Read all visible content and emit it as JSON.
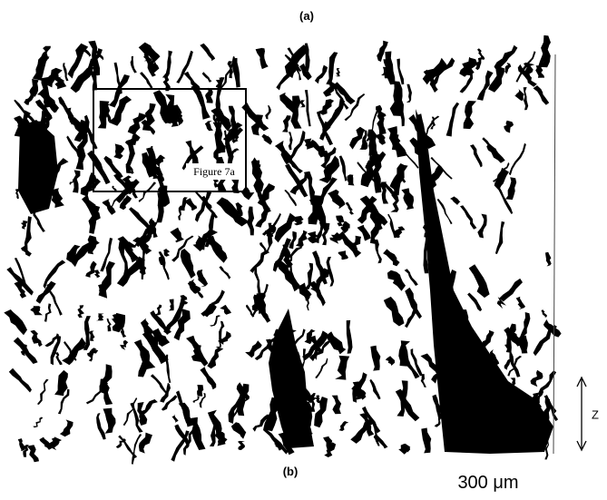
{
  "labels": {
    "top": "(a)",
    "inset": "Figure 7a",
    "bottom": "(b)",
    "scale": "300 μm",
    "axis": "Z"
  }
}
